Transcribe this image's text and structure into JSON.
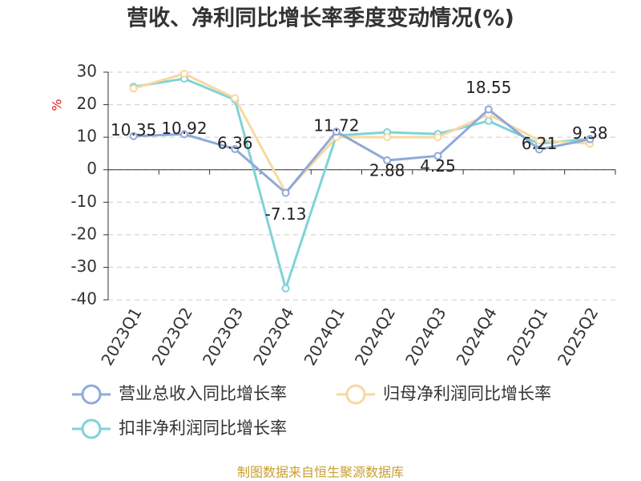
{
  "chart_data": {
    "type": "line",
    "title": "营收、净利同比增长率季度变动情况(%)",
    "y_label": "%",
    "categories": [
      "2023Q1",
      "2023Q2",
      "2023Q3",
      "2023Q4",
      "2024Q1",
      "2024Q2",
      "2024Q3",
      "2024Q4",
      "2025Q1",
      "2025Q2"
    ],
    "series": [
      {
        "name": "营业总收入同比增长率",
        "color": "#8fa9d9",
        "values": [
          10.35,
          10.92,
          6.36,
          -7.13,
          11.72,
          2.88,
          4.25,
          18.55,
          6.21,
          9.38
        ],
        "show_labels": true
      },
      {
        "name": "归母净利润同比增长率",
        "color": "#f7d9a0",
        "values": [
          25,
          29.5,
          22,
          -7,
          10,
          10,
          10,
          17,
          9,
          8
        ],
        "show_labels": false
      },
      {
        "name": "扣非净利润同比增长率",
        "color": "#7fd3d6",
        "values": [
          25.5,
          28,
          21.5,
          -36.5,
          10.5,
          11.5,
          11,
          15,
          8,
          9.5
        ],
        "show_labels": false
      }
    ],
    "ylim": [
      -40,
      30
    ],
    "yticks": [
      -40,
      -30,
      -20,
      -10,
      0,
      10,
      20,
      30
    ],
    "grid": true,
    "source": "制图数据来自恒生聚源数据库"
  }
}
